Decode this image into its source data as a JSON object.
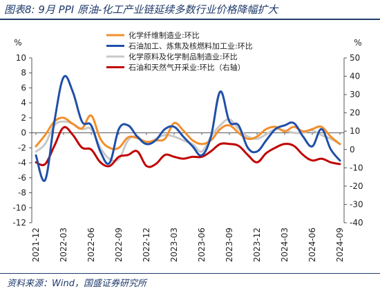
{
  "figure": {
    "title": "图表8: 9月 PPI 原油-化工产业链延续多数行业价格降幅扩大",
    "source": "资料来源：Wind，国盛证券研究所"
  },
  "chart_data": {
    "type": "line",
    "left_axis": {
      "unit": "%",
      "ylim": [
        -12,
        10
      ],
      "ticks": [
        10,
        8,
        6,
        4,
        2,
        0,
        -2,
        -4,
        -6,
        -8,
        -10,
        -12
      ]
    },
    "right_axis": {
      "unit": "%",
      "ylim": [
        -40,
        50
      ],
      "ticks": [
        50,
        40,
        30,
        20,
        10,
        0,
        -10,
        -20,
        -30,
        -40
      ]
    },
    "x_tick_labels": [
      "2021-12",
      "2022-03",
      "2022-06",
      "2022-09",
      "2022-12",
      "2023-03",
      "2023-06",
      "2023-09",
      "2023-12",
      "2024-03",
      "2024-06",
      "2024-09"
    ],
    "x": [
      "2021-12",
      "2022-01",
      "2022-02",
      "2022-03",
      "2022-04",
      "2022-05",
      "2022-06",
      "2022-07",
      "2022-08",
      "2022-09",
      "2022-10",
      "2022-11",
      "2022-12",
      "2023-01",
      "2023-02",
      "2023-03",
      "2023-04",
      "2023-05",
      "2023-06",
      "2023-07",
      "2023-08",
      "2023-09",
      "2023-10",
      "2023-11",
      "2023-12",
      "2024-01",
      "2024-02",
      "2024-03",
      "2024-04",
      "2024-05",
      "2024-06",
      "2024-07",
      "2024-08",
      "2024-09"
    ],
    "series": [
      {
        "name": "化学纤维制造业:环比",
        "axis": "left",
        "color": "#f28e2b",
        "values": [
          -1.8,
          -0.3,
          1.5,
          2.0,
          1.2,
          0.6,
          2.3,
          -0.8,
          -2.0,
          -2.0,
          -0.6,
          -0.7,
          -1.2,
          -1.0,
          -0.8,
          1.3,
          0.3,
          -1.0,
          -1.5,
          -1.0,
          0.5,
          1.0,
          0.0,
          -0.8,
          -0.5,
          0.5,
          0.8,
          0.2,
          0.8,
          0.2,
          0.5,
          0.8,
          -0.5,
          -1.5
        ]
      },
      {
        "name": "石油加工、炼焦及核燃料加工业:环比",
        "axis": "left",
        "color": "#1f4fa8",
        "values": [
          -3.0,
          -6.3,
          1.5,
          7.4,
          5.5,
          1.5,
          1.0,
          -2.5,
          -4.0,
          0.5,
          1.0,
          -0.5,
          -1.5,
          -1.0,
          0.5,
          0.8,
          -0.5,
          -1.8,
          -3.0,
          -0.5,
          5.5,
          1.5,
          1.0,
          -2.0,
          -2.5,
          -1.0,
          0.5,
          1.0,
          1.3,
          -0.5,
          -1.8,
          0.5,
          -2.2,
          -3.7
        ]
      },
      {
        "name": "化学原料及化学制品制造业:环比",
        "axis": "left",
        "color": "#c8c8c8",
        "values": [
          -2.5,
          -1.5,
          1.0,
          1.5,
          1.2,
          0.5,
          0.5,
          -2.0,
          -3.5,
          -3.5,
          -1.0,
          -0.5,
          -1.5,
          -0.8,
          -0.3,
          -0.5,
          -1.0,
          -1.5,
          -2.5,
          -0.5,
          1.0,
          1.8,
          0.5,
          -0.5,
          -0.8,
          -0.2,
          0.5,
          0.3,
          0.0,
          0.0,
          0.3,
          -0.3,
          -0.8,
          -1.5
        ]
      },
      {
        "name": "石油和天然气开采业:环比（右轴）",
        "axis": "right",
        "color": "#c00000",
        "values": [
          -7,
          -8,
          2,
          12,
          8,
          1,
          0,
          -7,
          -9,
          -4,
          -3,
          -1,
          -9,
          -8,
          -3,
          -4,
          -5,
          -4,
          -4,
          -1,
          3,
          3,
          2,
          -3,
          -7,
          -2,
          1,
          3,
          2,
          -3,
          -6,
          -5,
          -7,
          -8
        ]
      }
    ],
    "legend_position": "top",
    "grid": false
  }
}
